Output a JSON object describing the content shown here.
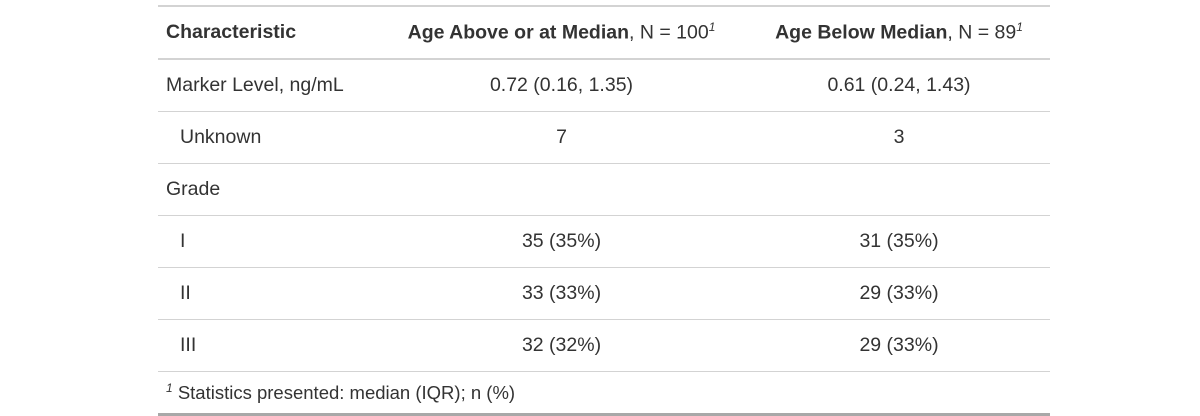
{
  "table": {
    "columns": [
      {
        "label": "Characteristic"
      },
      {
        "label": "Age Above or at Median",
        "n": "N = 100",
        "note": "1"
      },
      {
        "label": "Age Below Median",
        "n": "N = 89",
        "note": "1"
      }
    ],
    "rows": [
      {
        "label": "Marker Level, ng/mL",
        "indent": false,
        "cells": [
          "0.72 (0.16, 1.35)",
          "0.61 (0.24, 1.43)"
        ]
      },
      {
        "label": "Unknown",
        "indent": true,
        "cells": [
          "7",
          "3"
        ]
      },
      {
        "label": "Grade",
        "indent": false,
        "cells": []
      },
      {
        "label": "I",
        "indent": true,
        "cells": [
          "35 (35%)",
          "31 (35%)"
        ]
      },
      {
        "label": "II",
        "indent": true,
        "cells": [
          "33 (33%)",
          "29 (33%)"
        ]
      },
      {
        "label": "III",
        "indent": true,
        "cells": [
          "32 (32%)",
          "29 (33%)"
        ]
      }
    ],
    "footnote": {
      "mark": "1",
      "text": "Statistics presented: median (IQR); n (%)"
    }
  }
}
